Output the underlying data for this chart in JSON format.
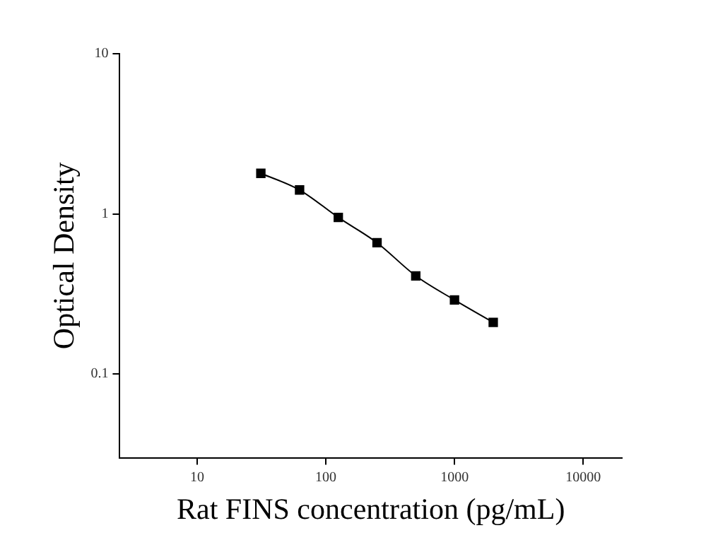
{
  "chart_data": {
    "type": "line",
    "xlabel": "Rat FINS concentration (pg/mL)",
    "ylabel": "Optical Density",
    "x": [
      31.25,
      62.5,
      125,
      250,
      500,
      1000,
      2000
    ],
    "series": [
      {
        "color": "#000000",
        "values": [
          1.79,
          1.41,
          0.95,
          0.66,
          0.41,
          0.29,
          0.21
        ]
      }
    ],
    "log": "xy",
    "xlim": [
      2.5,
      20000
    ],
    "ylim": [
      0.03,
      10
    ],
    "xticks": [
      10,
      100,
      1000,
      10000
    ],
    "yticks": [
      0.1,
      1,
      10
    ],
    "marker": "square",
    "line_style": "solid",
    "grid": false,
    "legend": false
  }
}
